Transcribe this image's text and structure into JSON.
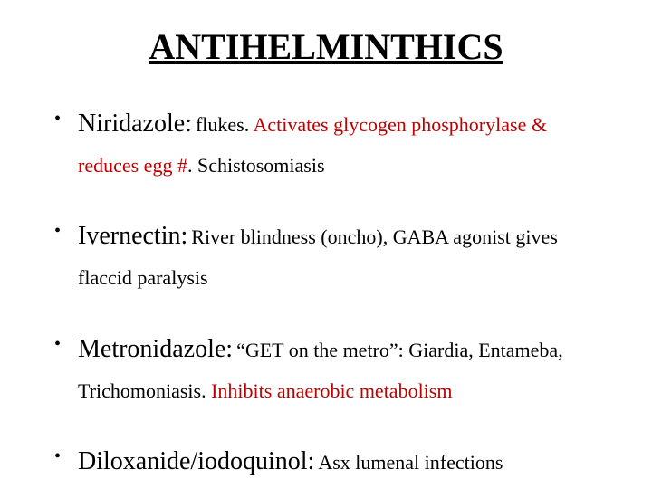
{
  "title": "ANTIHELMINTHICS",
  "items": [
    {
      "drug": "Niridazole:",
      "parts": [
        {
          "text": "flukes. ",
          "red": false
        },
        {
          "text": "Activates glycogen phosphorylase & reduces egg #",
          "red": true
        },
        {
          "text": ". Schistosomiasis",
          "red": false
        }
      ]
    },
    {
      "drug": "Ivernectin:",
      "parts": [
        {
          "text": "River blindness (oncho), GABA agonist gives flaccid paralysis",
          "red": false
        }
      ]
    },
    {
      "drug": "Metronidazole:",
      "parts": [
        {
          "text": "“GET on the metro”: Giardia, Entameba, Trichomoniasis. ",
          "red": false
        },
        {
          "text": "Inhibits anaerobic metabolism",
          "red": true
        }
      ]
    },
    {
      "drug": "Diloxanide/iodoquinol:",
      "parts": [
        {
          "text": "Asx lumenal infections",
          "red": false
        }
      ]
    }
  ],
  "style": {
    "title_fontsize": 40,
    "drug_fontsize": 28,
    "desc_fontsize": 22,
    "text_color": "#000000",
    "highlight_color": "#c00000",
    "background_color": "#ffffff",
    "font_family": "Times New Roman"
  }
}
